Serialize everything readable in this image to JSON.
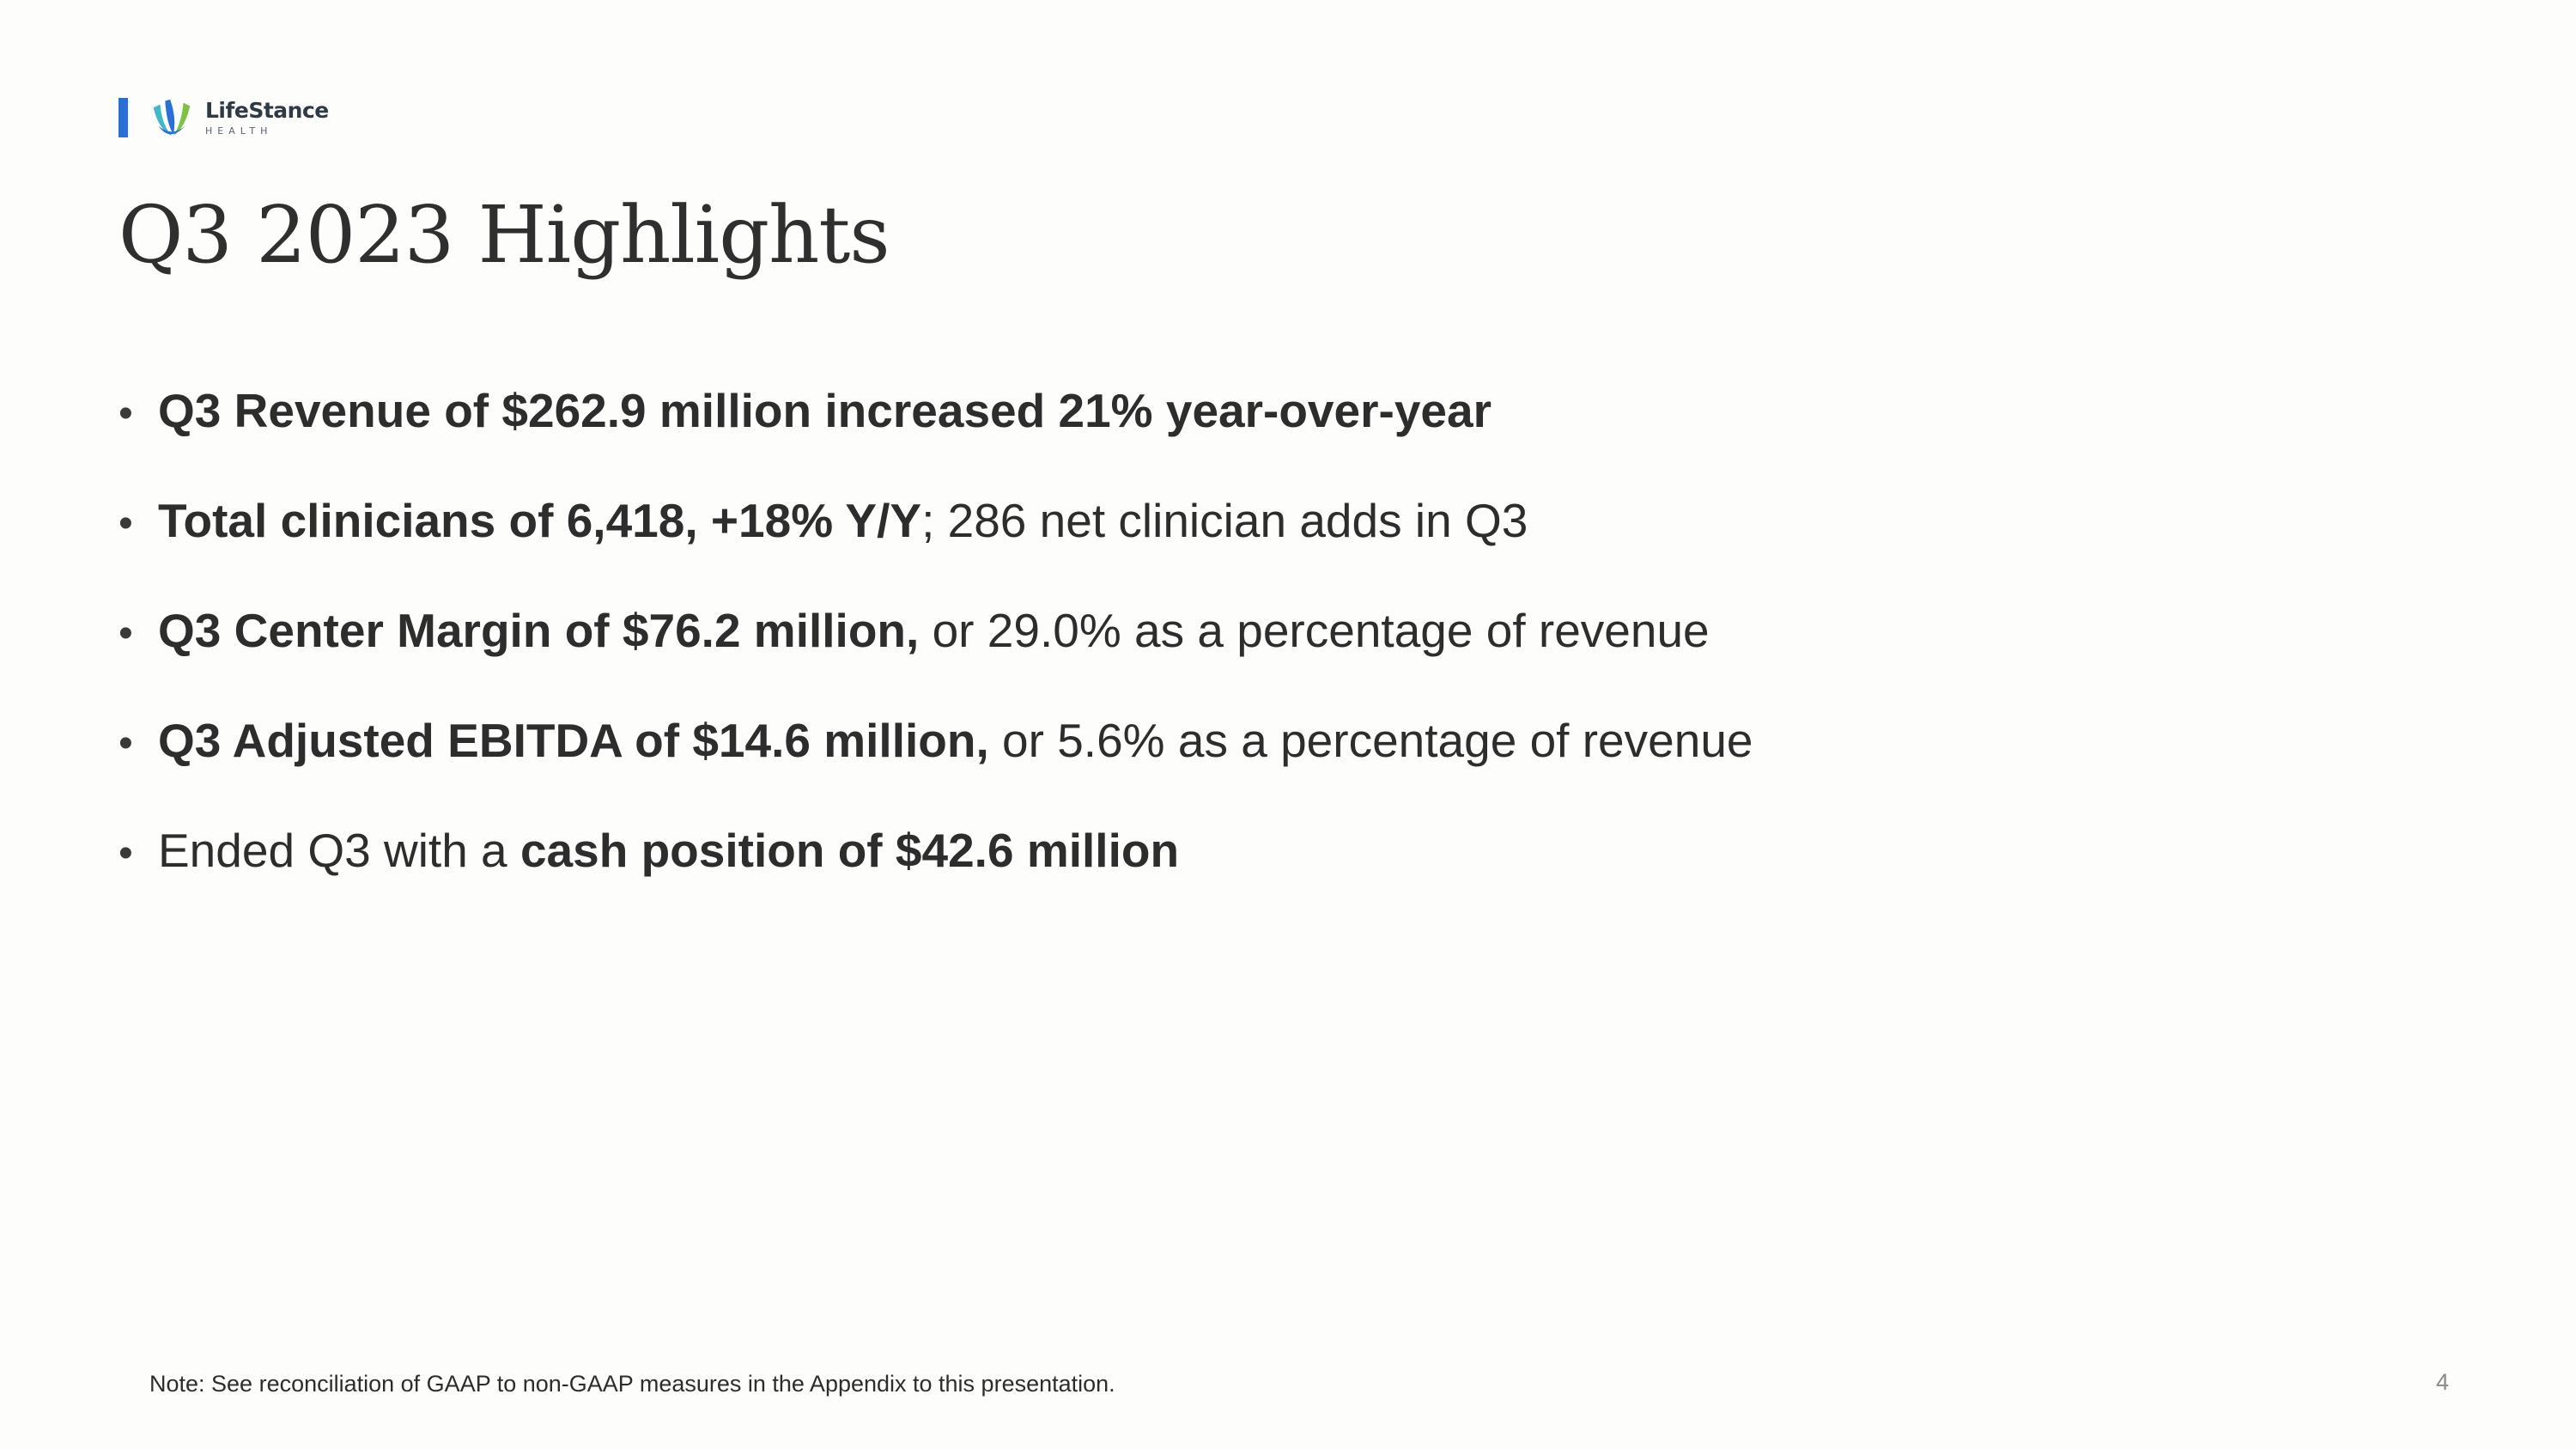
{
  "logo": {
    "name": "LifeStance",
    "sub": "HEALTH",
    "colors": {
      "bar": "#2a6fd6",
      "leaf_blue": "#2a6fd6",
      "leaf_green": "#7dc242",
      "leaf_teal": "#3fb8c8"
    }
  },
  "slide": {
    "title": "Q3 2023 Highlights",
    "bullets": [
      {
        "bold": "Q3 Revenue of $262.9 million increased 21% year-over-year",
        "normal": ""
      },
      {
        "bold": "Total clinicians of 6,418, +18% Y/Y",
        "normal": "; 286 net clinician adds in Q3"
      },
      {
        "bold": "Q3 Center Margin of $76.2 million,",
        "normal": " or 29.0% as a percentage of revenue"
      },
      {
        "bold": "Q3 Adjusted EBITDA of $14.6 million,",
        "normal": " or 5.6% as a percentage of revenue"
      },
      {
        "prefix": "Ended Q3 with a ",
        "bold": "cash position of $42.6 million"
      }
    ],
    "bullet_glyph": "•",
    "footnote": "Note:  See reconciliation of GAAP to non-GAAP measures in the Appendix to this presentation.",
    "page_number": "4"
  }
}
